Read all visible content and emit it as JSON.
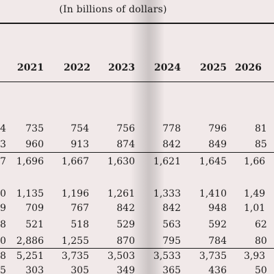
{
  "subtitle": "(In billions of dollars)",
  "years": [
    "2021",
    "2022",
    "2023",
    "2024",
    "2025",
    "2026"
  ],
  "left_fragment_header": "",
  "rows": [
    {
      "frag": "4",
      "values": [
        "735",
        "754",
        "756",
        "778",
        "796",
        "81"
      ]
    },
    {
      "frag": "3",
      "values": [
        "960",
        "913",
        "874",
        "842",
        "849",
        "85"
      ]
    },
    {
      "frag": "7",
      "values": [
        "1,696",
        "1,667",
        "1,630",
        "1,621",
        "1,645",
        "1,66"
      ]
    },
    {
      "frag": "0",
      "values": [
        "1,135",
        "1,196",
        "1,261",
        "1,333",
        "1,410",
        "1,49"
      ]
    },
    {
      "frag": "9",
      "values": [
        "709",
        "767",
        "842",
        "842",
        "948",
        "1,01"
      ]
    },
    {
      "frag": "8",
      "values": [
        "521",
        "518",
        "529",
        "563",
        "592",
        "62"
      ]
    },
    {
      "frag": "0",
      "values": [
        "2,886",
        "1,255",
        "870",
        "795",
        "784",
        "80"
      ]
    },
    {
      "frag": "8",
      "values": [
        "5,251",
        "3,735",
        "3,503",
        "3,533",
        "3,735",
        "3,93"
      ]
    },
    {
      "frag": "5",
      "values": [
        "303",
        "305",
        "349",
        "365",
        "436",
        "50"
      ]
    }
  ]
}
